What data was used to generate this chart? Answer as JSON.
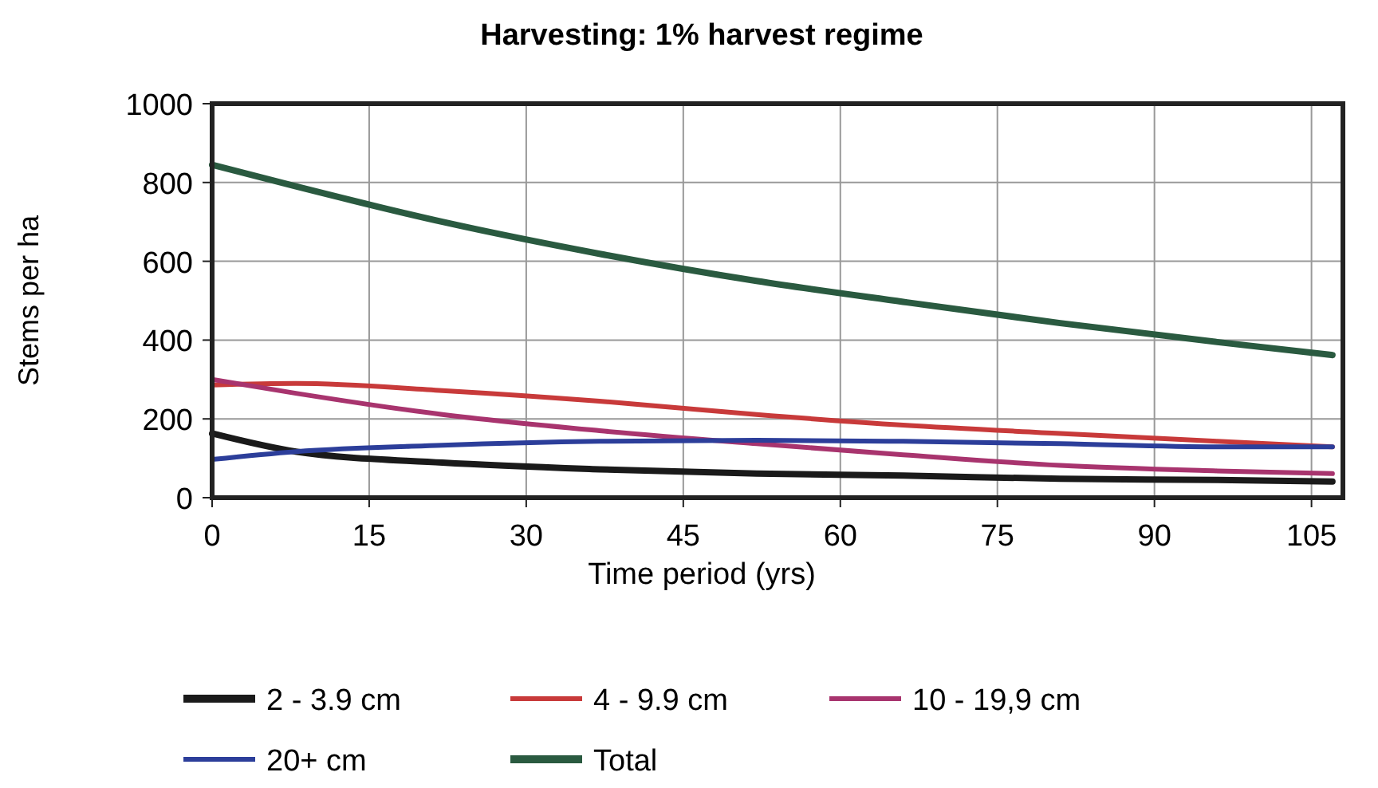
{
  "chart_data": {
    "type": "line",
    "title": "Harvesting: 1% harvest regime",
    "xlabel": "Time period (yrs)",
    "ylabel": "Stems per ha",
    "x": [
      0,
      8,
      22,
      37,
      52,
      66,
      81,
      96,
      107
    ],
    "series": [
      {
        "name": "2 - 3.9 cm",
        "color": "#1a1a1a",
        "values": [
          163,
          117,
          89,
          72,
          61,
          56,
          48,
          45,
          41
        ]
      },
      {
        "name": "4 - 9.9 cm",
        "color": "#c83a3a",
        "values": [
          286,
          290,
          272,
          245,
          211,
          184,
          163,
          143,
          129
        ]
      },
      {
        "name": "10 - 19,9 cm",
        "color": "#a8346e",
        "values": [
          300,
          265,
          211,
          170,
          137,
          109,
          82,
          68,
          61
        ]
      },
      {
        "name": "20+ cm",
        "color": "#2c3e9a",
        "values": [
          97,
          117,
          133,
          143,
          146,
          143,
          137,
          129,
          129
        ]
      },
      {
        "name": "Total",
        "color": "#2a5a40",
        "values": [
          845,
          790,
          700,
          619,
          550,
          497,
          443,
          395,
          362
        ]
      }
    ],
    "xlim": [
      0,
      108
    ],
    "xticks": [
      0,
      15,
      30,
      45,
      60,
      75,
      90,
      105
    ],
    "ylim": [
      0,
      1000
    ],
    "yticks": [
      0,
      200,
      400,
      600,
      800,
      1000
    ],
    "grid": true,
    "legend": "bottom",
    "marker": "none",
    "line_style": "solid"
  }
}
